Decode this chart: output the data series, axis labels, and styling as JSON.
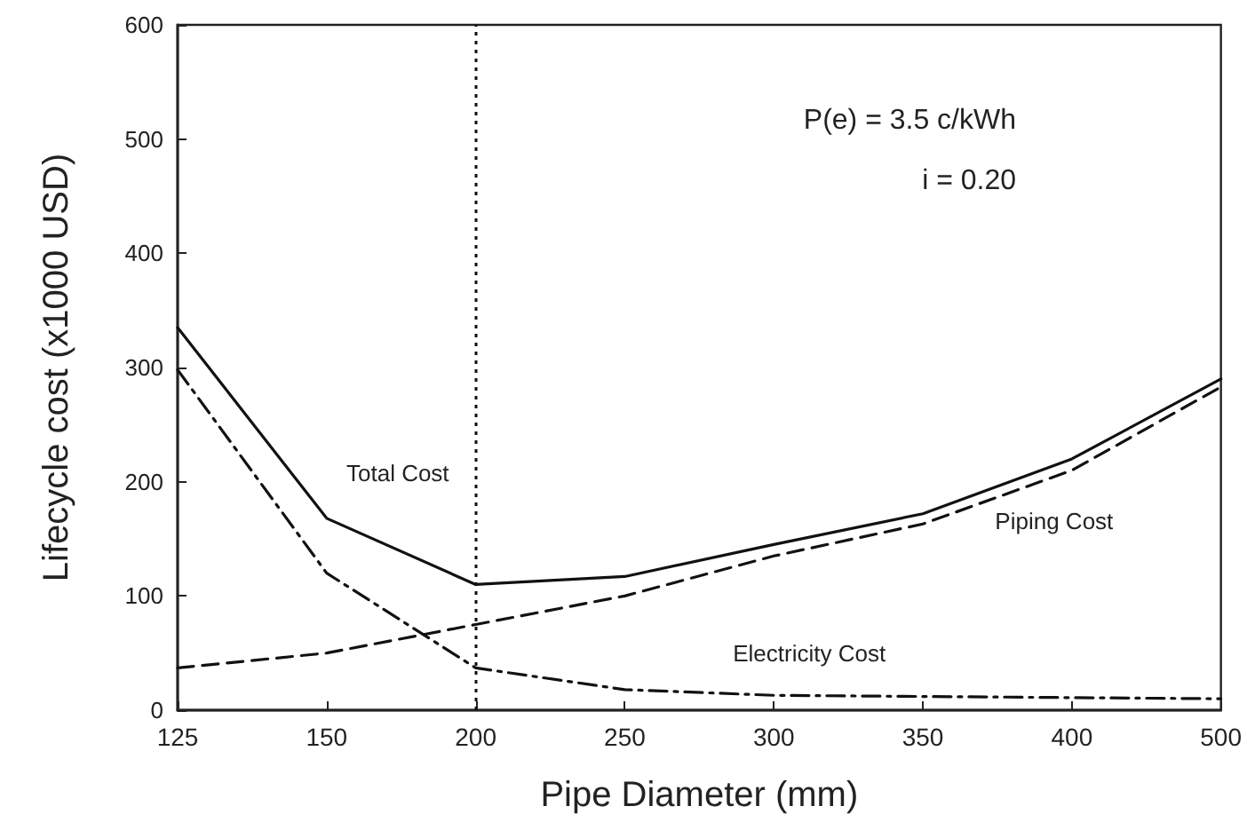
{
  "chart_data": {
    "type": "line",
    "xlabel": "Pipe Diameter (mm)",
    "ylabel": "Lifecycle cost (x1000 USD)",
    "categories": [
      "125",
      "150",
      "200",
      "250",
      "300",
      "350",
      "400",
      "500"
    ],
    "series": [
      {
        "name": "Total Cost",
        "color": "#111111",
        "line_style": "solid",
        "values": [
          335,
          168,
          110,
          117,
          145,
          172,
          220,
          290
        ]
      },
      {
        "name": "Piping Cost",
        "color": "#111111",
        "line_style": "dashed",
        "values": [
          37,
          50,
          75,
          100,
          135,
          163,
          210,
          283
        ]
      },
      {
        "name": "Electricity Cost",
        "color": "#111111",
        "line_style": "dashdot",
        "values": [
          298,
          120,
          37,
          18,
          13,
          12,
          11,
          10
        ]
      }
    ],
    "ylim": [
      0,
      600
    ],
    "yticks": [
      0,
      100,
      200,
      300,
      400,
      500,
      600
    ],
    "ref_lines": [
      {
        "axis": "x",
        "value": "200",
        "line_style": "dotted",
        "color": "#111111"
      }
    ],
    "annotations": [
      "P(e) = 3.5 c/kWh",
      "i = 0.20"
    ],
    "grid": false,
    "legend": false,
    "marker": "none"
  }
}
